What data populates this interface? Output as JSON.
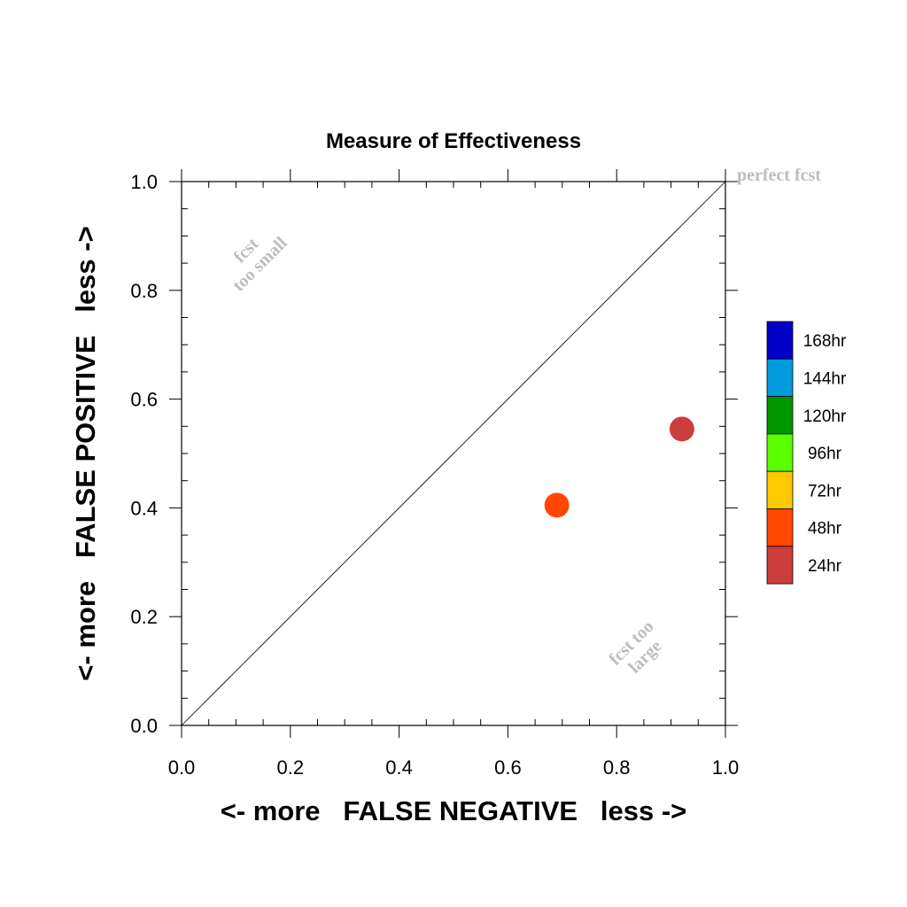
{
  "chart_data": {
    "type": "scatter",
    "title": "Measure of Effectiveness",
    "xlabel": "<- more   FALSE NEGATIVE   less ->",
    "ylabel": "<- more   FALSE POSITIVE   less ->",
    "xlim": [
      0.0,
      1.0
    ],
    "ylim": [
      0.0,
      1.0
    ],
    "x_ticks": [
      "0.0",
      "0.2",
      "0.4",
      "0.6",
      "0.8",
      "1.0"
    ],
    "y_ticks": [
      "0.0",
      "0.2",
      "0.4",
      "0.6",
      "0.8",
      "1.0"
    ],
    "grid": false,
    "reference_line": {
      "x": [
        0.0,
        1.0
      ],
      "y": [
        0.0,
        1.0
      ]
    },
    "annotations": {
      "perfect": "perfect fcst",
      "too_small_line1": "fcst",
      "too_small_line2": "too small",
      "too_large_line1": "fcst too",
      "too_large_line2": "large"
    },
    "points": [
      {
        "series": "24hr",
        "x": 0.92,
        "y": 0.545,
        "color": "#cc3d3d"
      },
      {
        "series": "48hr",
        "x": 0.69,
        "y": 0.405,
        "color": "#ff4700"
      }
    ],
    "legend": {
      "position": "right",
      "entries": [
        {
          "label": "168hr",
          "color": "#0000c8"
        },
        {
          "label": "144hr",
          "color": "#009bdc"
        },
        {
          "label": "120hr",
          "color": "#009600"
        },
        {
          "label": "96hr",
          "color": "#5aff00"
        },
        {
          "label": "72hr",
          "color": "#ffc800"
        },
        {
          "label": "48hr",
          "color": "#ff4700"
        },
        {
          "label": "24hr",
          "color": "#cc3d3d"
        }
      ]
    }
  }
}
